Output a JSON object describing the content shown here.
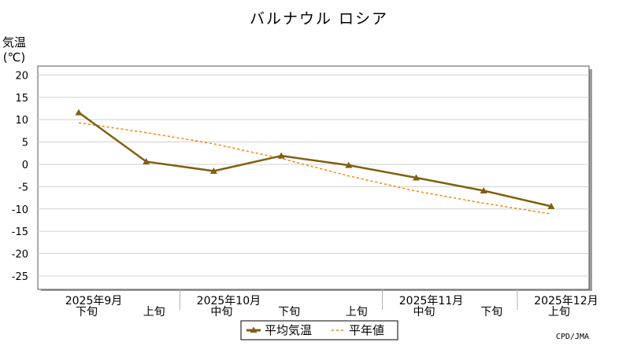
{
  "chart_data": {
    "type": "line",
    "title": "バルナウル ロシア",
    "ylabel_line1": "気温",
    "ylabel_line2": "(℃)",
    "ylim": [
      -28,
      22
    ],
    "yticks": [
      20,
      15,
      10,
      5,
      0,
      -5,
      -10,
      -15,
      -20,
      -25
    ],
    "grid": true,
    "legend_position": "bottom-center",
    "x": [
      "2025年9月 下旬",
      "2025年10月 上旬",
      "2025年10月 中旬",
      "2025年10月 下旬",
      "2025年11月 上旬",
      "2025年11月 中旬",
      "2025年11月 下旬",
      "2025年12月 上旬"
    ],
    "periods": [
      "下旬",
      "上旬",
      "中旬",
      "下旬",
      "上旬",
      "中旬",
      "下旬",
      "上旬"
    ],
    "months": [
      {
        "label": "2025年9月",
        "index": 0
      },
      {
        "label": "2025年10月",
        "index": 2
      },
      {
        "label": "2025年11月",
        "index": 5
      },
      {
        "label": "2025年12月",
        "index": 7
      }
    ],
    "series": [
      {
        "name": "平均気温",
        "color": "#806010",
        "style": "solid-triangle",
        "values": [
          11.6,
          0.6,
          -1.5,
          1.9,
          -0.2,
          -3.0,
          -5.9,
          -9.4
        ]
      },
      {
        "name": "平年値",
        "color": "#ff7f00",
        "style": "dotted",
        "values": [
          9.3,
          7.1,
          4.6,
          1.3,
          -2.6,
          -6.0,
          -8.7,
          -11.1
        ]
      }
    ],
    "credit": "CPD/JMA"
  }
}
